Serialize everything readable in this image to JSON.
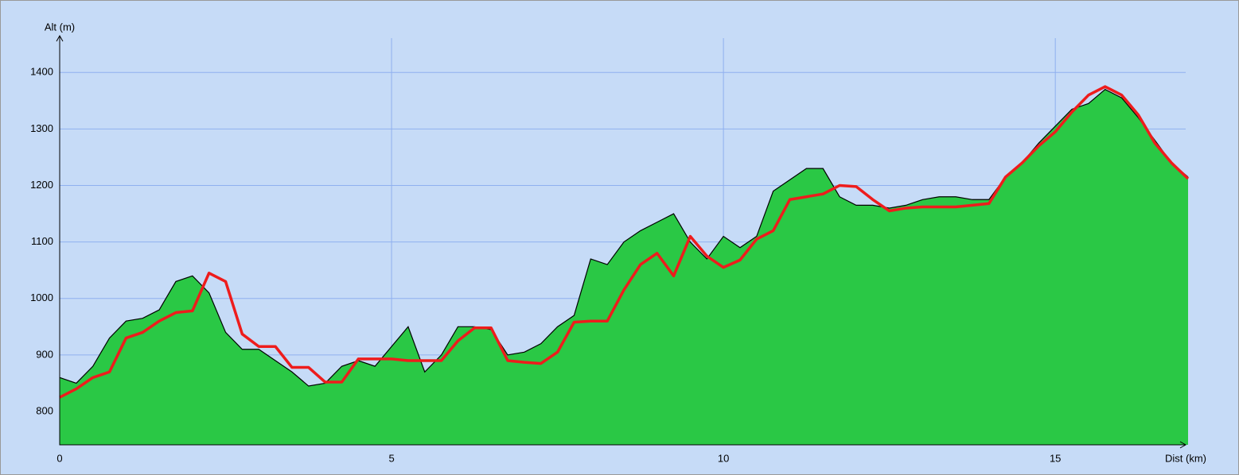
{
  "chart_data": {
    "type": "area",
    "x_label": "Dist (km)",
    "y_label": "Alt (m)",
    "x": [
      0,
      0.25,
      0.5,
      0.75,
      1,
      1.25,
      1.5,
      1.75,
      2,
      2.25,
      2.5,
      2.75,
      3,
      3.25,
      3.5,
      3.75,
      4,
      4.25,
      4.5,
      4.75,
      5,
      5.25,
      5.5,
      5.75,
      6,
      6.25,
      6.5,
      6.75,
      7,
      7.25,
      7.5,
      7.75,
      8,
      8.25,
      8.5,
      8.75,
      9,
      9.25,
      9.5,
      9.75,
      10,
      10.25,
      10.5,
      10.75,
      11,
      11.25,
      11.5,
      11.75,
      12,
      12.25,
      12.5,
      12.75,
      13,
      13.25,
      13.5,
      13.75,
      14,
      14.25,
      14.5,
      14.75,
      15,
      15.25,
      15.5,
      15.75,
      16,
      16.25,
      16.5,
      16.75,
      17
    ],
    "series": [
      {
        "style": "area",
        "color": "#2ac845",
        "values": [
          860,
          850,
          880,
          930,
          960,
          965,
          980,
          1030,
          1040,
          1010,
          940,
          910,
          910,
          890,
          870,
          845,
          850,
          880,
          890,
          880,
          915,
          950,
          870,
          900,
          950,
          950,
          945,
          900,
          905,
          920,
          950,
          970,
          1070,
          1060,
          1100,
          1120,
          1135,
          1150,
          1100,
          1070,
          1110,
          1090,
          1110,
          1190,
          1210,
          1230,
          1230,
          1180,
          1165,
          1165,
          1160,
          1165,
          1175,
          1180,
          1180,
          1175,
          1175,
          1215,
          1240,
          1275,
          1305,
          1335,
          1345,
          1370,
          1355,
          1320,
          1280,
          1240,
          1215
        ]
      },
      {
        "style": "line",
        "color": "#ee1c1c",
        "values": [
          825,
          840,
          860,
          870,
          930,
          940,
          960,
          975,
          978,
          1045,
          1030,
          937,
          915,
          915,
          878,
          878,
          852,
          852,
          893,
          893,
          893,
          890,
          890,
          890,
          925,
          948,
          948,
          890,
          887,
          885,
          905,
          958,
          960,
          960,
          1015,
          1060,
          1080,
          1040,
          1110,
          1075,
          1055,
          1068,
          1105,
          1120,
          1175,
          1180,
          1185,
          1200,
          1198,
          1175,
          1155,
          1160,
          1162,
          1162,
          1162,
          1165,
          1168,
          1215,
          1240,
          1270,
          1295,
          1330,
          1360,
          1375,
          1360,
          1325,
          1275,
          1240,
          1212
        ]
      }
    ],
    "xlim": [
      0,
      17
    ],
    "ylim": [
      741,
      1465
    ],
    "xticks": [
      0,
      5,
      10,
      15
    ],
    "yticks": [
      800,
      900,
      1000,
      1100,
      1200,
      1300,
      1400
    ],
    "grid": true,
    "background": "#c6dbf7",
    "grid_color": "#8fb0ef"
  }
}
